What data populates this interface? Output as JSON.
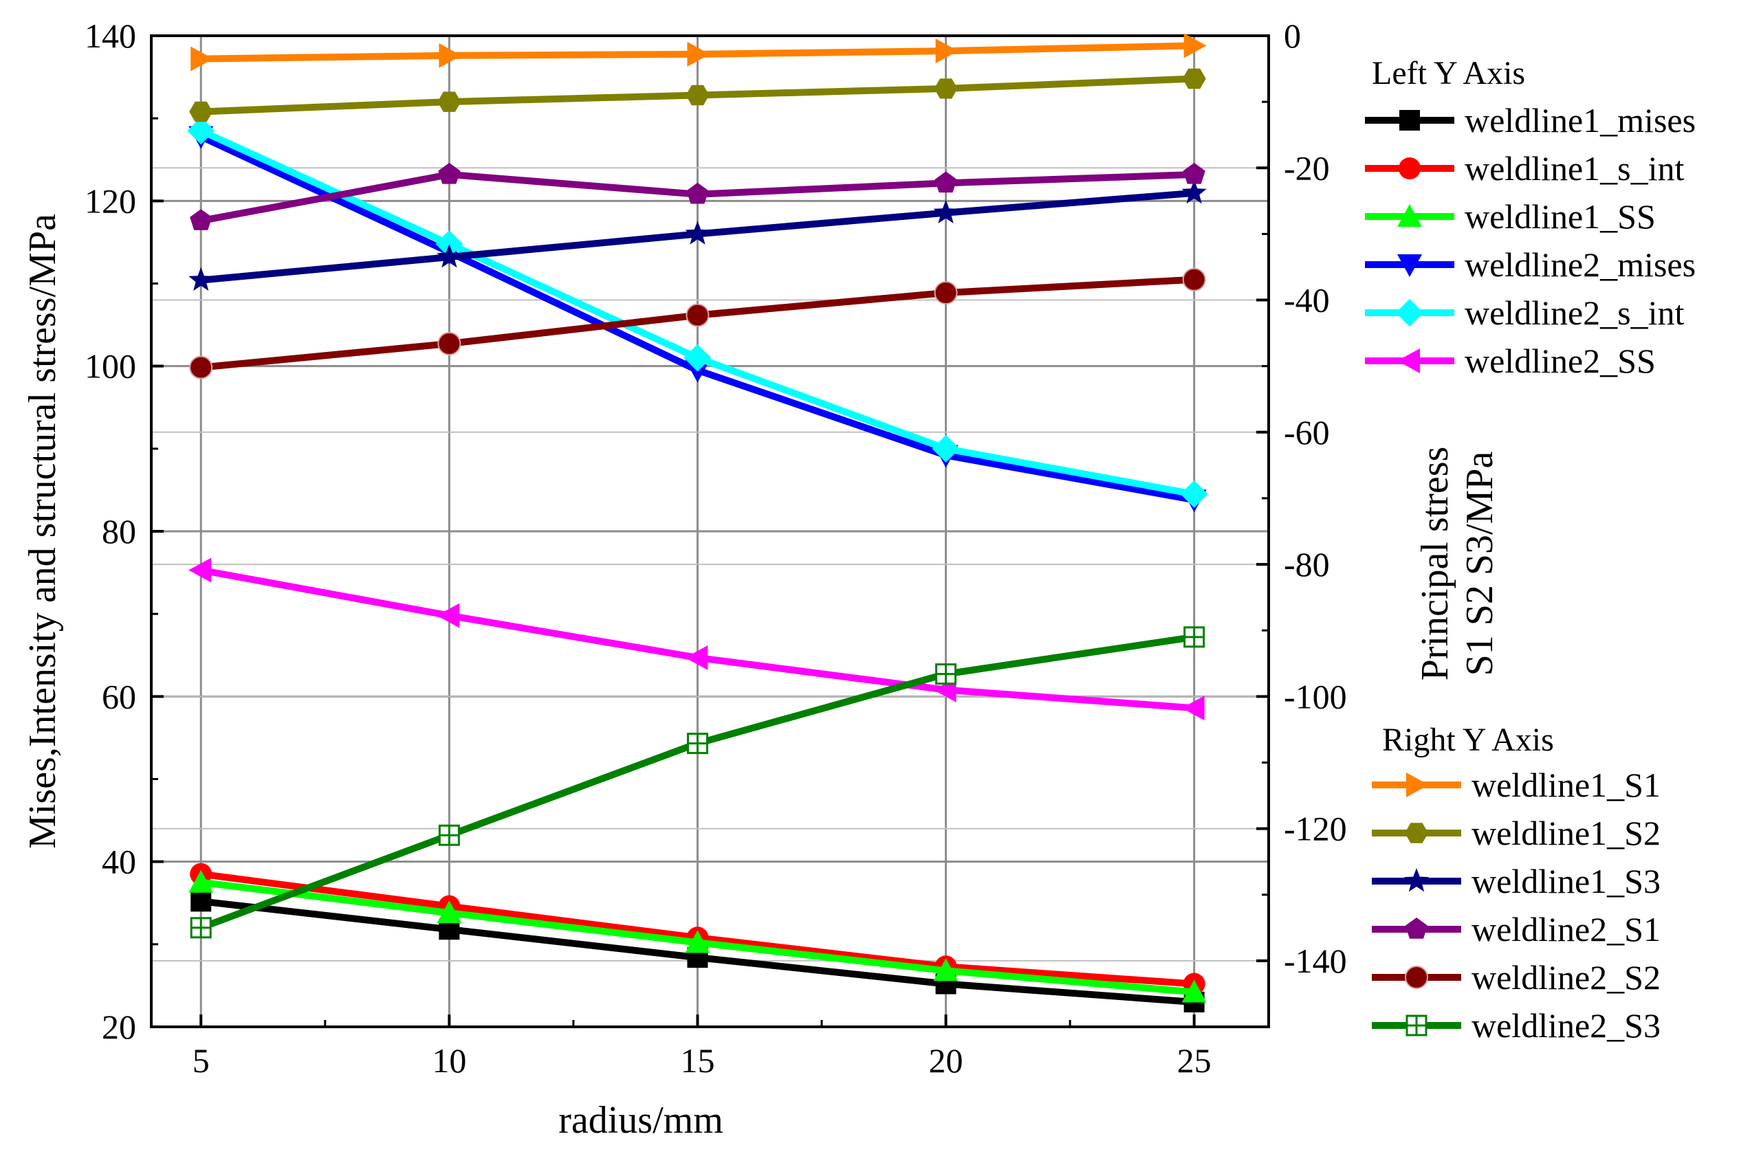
{
  "chart_data": {
    "type": "line",
    "xlabel": "radius/mm",
    "ylabel_left": "Mises,Intensity and structural stress/MPa",
    "ylabel_right_line1": "Principal stress",
    "ylabel_right_line2": "S1 S2 S3/MPa",
    "x": [
      5,
      10,
      15,
      20,
      25
    ],
    "x_ticks": [
      "5",
      "10",
      "15",
      "20",
      "25"
    ],
    "xlim": [
      4,
      26.5
    ],
    "ylim_left": [
      20,
      140
    ],
    "ylim_right": [
      -150,
      0
    ],
    "y_ticks_left": [
      "20",
      "40",
      "60",
      "80",
      "100",
      "120",
      "140"
    ],
    "y_ticks_right": [
      "0",
      "-20",
      "-40",
      "-60",
      "-80",
      "-100",
      "-120",
      "-140"
    ],
    "legend_left_title": "Left Y Axis",
    "legend_right_title": "Right Y Axis",
    "series": [
      {
        "name": "weldline1_mises",
        "axis": "left",
        "color": "#000000",
        "marker": "square",
        "values": [
          35.2,
          31.8,
          28.4,
          25.2,
          23.0
        ]
      },
      {
        "name": "weldline1_s_int",
        "axis": "left",
        "color": "#ff0000",
        "marker": "circle",
        "values": [
          38.5,
          34.6,
          30.8,
          27.3,
          25.2
        ]
      },
      {
        "name": "weldline1_SS",
        "axis": "left",
        "color": "#00ff00",
        "marker": "triangle-up",
        "values": [
          37.5,
          33.8,
          30.2,
          26.8,
          24.2
        ]
      },
      {
        "name": "weldline2_mises",
        "axis": "left",
        "color": "#0000ff",
        "marker": "triangle-down",
        "values": [
          127.8,
          113.8,
          99.5,
          89.2,
          83.8
        ]
      },
      {
        "name": "weldline2_s_int",
        "axis": "left",
        "color": "#00ffff",
        "marker": "diamond",
        "values": [
          128.5,
          114.8,
          101.0,
          90.0,
          84.5
        ]
      },
      {
        "name": "weldline2_SS",
        "axis": "left",
        "color": "#ff00ff",
        "marker": "triangle-left",
        "values": [
          75.3,
          69.8,
          64.7,
          60.8,
          58.6
        ]
      },
      {
        "name": "weldline1_S1",
        "axis": "right",
        "color": "#ff8000",
        "marker": "triangle-right",
        "values": [
          -3.5,
          -3.0,
          -2.8,
          -2.3,
          -1.5
        ]
      },
      {
        "name": "weldline1_S2",
        "axis": "right",
        "color": "#808000",
        "marker": "hexagon",
        "values": [
          -11.5,
          -10.0,
          -9.0,
          -8.0,
          -6.5
        ]
      },
      {
        "name": "weldline1_S3",
        "axis": "right",
        "color": "#000080",
        "marker": "star",
        "values": [
          -37.0,
          -33.5,
          -30.0,
          -26.8,
          -23.8
        ]
      },
      {
        "name": "weldline2_S1",
        "axis": "right",
        "color": "#800080",
        "marker": "pentagon",
        "values": [
          -28.0,
          -21.0,
          -24.0,
          -22.3,
          -21.0
        ]
      },
      {
        "name": "weldline2_S2",
        "axis": "right",
        "color": "#800000",
        "marker": "ball",
        "values": [
          -50.2,
          -46.6,
          -42.3,
          -38.9,
          -36.9
        ]
      },
      {
        "name": "weldline2_S3",
        "axis": "right",
        "color": "#008000",
        "marker": "boxplus",
        "values": [
          -135.0,
          -121.0,
          -107.1,
          -96.6,
          -91.0
        ]
      }
    ]
  }
}
